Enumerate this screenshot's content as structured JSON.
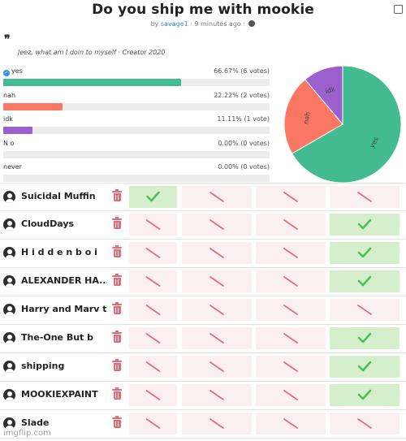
{
  "poll": {
    "title": "Do you ship me with mookie",
    "by_prefix": "by",
    "author": "savage1",
    "time": "· 9 minutes ago ·",
    "quote_mark": "❞",
    "description": "Jeez, what am I doin to myself · Creator 2020"
  },
  "options": [
    {
      "label": "yes",
      "stat": "66.67% (6 votes)",
      "percent": 66.67,
      "color": "#41bb8f",
      "voted": true
    },
    {
      "label": "nah",
      "stat": "22.22% (2 votes)",
      "percent": 22.22,
      "color": "#fb7763",
      "voted": false
    },
    {
      "label": "idk",
      "stat": "11.11% (1 vote)",
      "percent": 11.11,
      "color": "#9b5fce",
      "voted": false
    },
    {
      "label": "N o",
      "stat": "0.00% (0 votes)",
      "percent": 0,
      "color": "#cccccc",
      "voted": false
    },
    {
      "label": "never",
      "stat": "0.00% (0 votes)",
      "percent": 0,
      "color": "#cccccc",
      "voted": false
    }
  ],
  "chart_data": {
    "type": "pie",
    "slices": [
      {
        "label": "yes",
        "value": 6,
        "color": "#41bb8f"
      },
      {
        "label": "nah",
        "value": 2,
        "color": "#fb7763"
      },
      {
        "label": "idk",
        "value": 1,
        "color": "#9b5fce"
      }
    ]
  },
  "voters": [
    {
      "name": "Suicidal Muffin",
      "votes": [
        true,
        false,
        false,
        false
      ]
    },
    {
      "name": "CloudDays",
      "votes": [
        false,
        false,
        false,
        true
      ]
    },
    {
      "name": "H i d d e n b o i",
      "votes": [
        false,
        false,
        false,
        true
      ]
    },
    {
      "name": "ALEXANDER HA...",
      "votes": [
        false,
        false,
        false,
        true
      ]
    },
    {
      "name": "Harry and Marv t...",
      "votes": [
        false,
        false,
        false,
        false
      ]
    },
    {
      "name": "The-One But b",
      "votes": [
        false,
        false,
        false,
        true
      ]
    },
    {
      "name": "shipping",
      "votes": [
        false,
        false,
        false,
        true
      ]
    },
    {
      "name": "MOOKIEXPAINT",
      "votes": [
        false,
        false,
        false,
        true
      ]
    },
    {
      "name": "Slade",
      "votes": [
        false,
        false,
        false,
        false
      ]
    }
  ],
  "icons": {
    "avatar": "user-avatar-icon",
    "delete": "trash-icon",
    "yes": "checkmark-icon",
    "no": "slash-icon",
    "share": "external-link-icon",
    "visibility": "globe-icon"
  },
  "colors": {
    "check": "#4fbf55",
    "cross": "#e46a80",
    "delete": "#e46a78"
  },
  "watermark": "imgflip.com"
}
